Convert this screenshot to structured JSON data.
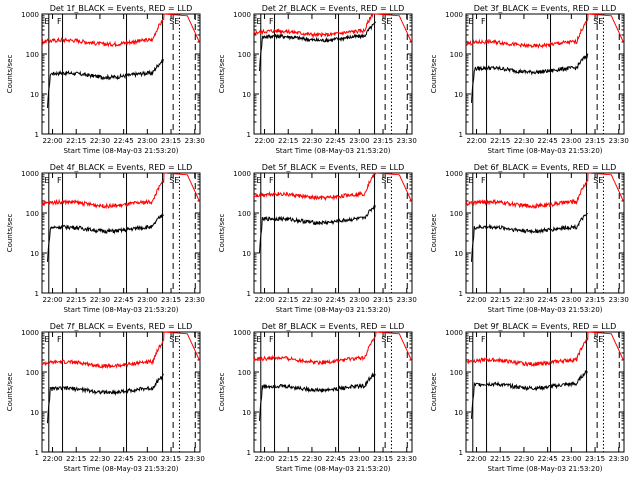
{
  "chart_data": [
    {
      "type": "line",
      "title": "Det 1f_BLACK = Events, RED = LLD",
      "ylabel": "Counts/sec",
      "xlabel": "Start Time (08-May-03 21:53:20)",
      "flags": [
        "E",
        "F",
        "SE"
      ],
      "series": [
        {
          "name": "BLACK",
          "level": 30
        },
        {
          "name": "RED",
          "level": 200
        }
      ]
    },
    {
      "type": "line",
      "title": "Det 2f_BLACK = Events, RED = LLD",
      "ylabel": "Counts/sec",
      "xlabel": "Start Time (08-May-03 21:53:20)",
      "flags": [
        "E",
        "F",
        "SE"
      ],
      "series": [
        {
          "name": "BLACK",
          "level": 250
        },
        {
          "name": "RED",
          "level": 340
        }
      ]
    },
    {
      "type": "line",
      "title": "Det 3f_BLACK = Events, RED = LLD",
      "ylabel": "Counts/sec",
      "xlabel": "Start Time (08-May-03 21:53:20)",
      "flags": [
        "E",
        "F",
        "SE"
      ],
      "series": [
        {
          "name": "BLACK",
          "level": 40
        },
        {
          "name": "RED",
          "level": 180
        }
      ]
    },
    {
      "type": "line",
      "title": "Det 4f_BLACK = Events, RED = LLD",
      "ylabel": "Counts/sec",
      "xlabel": "Start Time (08-May-03 21:53:20)",
      "flags": [
        "E",
        "F",
        "SE"
      ],
      "series": [
        {
          "name": "BLACK",
          "level": 40
        },
        {
          "name": "RED",
          "level": 170
        }
      ]
    },
    {
      "type": "line",
      "title": "Det 5f_BLACK = Events, RED = LLD",
      "ylabel": "Counts/sec",
      "xlabel": "Start Time (08-May-03 21:53:20)",
      "flags": [
        "E",
        "F",
        "SE"
      ],
      "series": [
        {
          "name": "BLACK",
          "level": 65
        },
        {
          "name": "RED",
          "level": 270
        }
      ]
    },
    {
      "type": "line",
      "title": "Det 6f_BLACK = Events, RED = LLD",
      "ylabel": "Counts/sec",
      "xlabel": "Start Time (08-May-03 21:53:20)",
      "flags": [
        "E",
        "F",
        "SE"
      ],
      "series": [
        {
          "name": "BLACK",
          "level": 40
        },
        {
          "name": "RED",
          "level": 170
        }
      ]
    },
    {
      "type": "line",
      "title": "Det 7f_BLACK = Events, RED = LLD",
      "ylabel": "Counts/sec",
      "xlabel": "Start Time (08-May-03 21:53:20)",
      "flags": [
        "E",
        "F",
        "SE"
      ],
      "series": [
        {
          "name": "BLACK",
          "level": 35
        },
        {
          "name": "RED",
          "level": 160
        }
      ]
    },
    {
      "type": "line",
      "title": "Det 8f_BLACK = Events, RED = LLD",
      "ylabel": "Counts/sec",
      "xlabel": "Start Time (08-May-03 21:53:20)",
      "flags": [
        "E",
        "F",
        "SE"
      ],
      "series": [
        {
          "name": "BLACK",
          "level": 40
        },
        {
          "name": "RED",
          "level": 200
        }
      ]
    },
    {
      "type": "line",
      "title": "Det 9f_BLACK = Events, RED = LLD",
      "ylabel": "Counts/sec",
      "xlabel": "Start Time (08-May-03 21:53:20)",
      "flags": [
        "E",
        "F",
        "SE"
      ],
      "series": [
        {
          "name": "BLACK",
          "level": 45
        },
        {
          "name": "RED",
          "level": 180
        }
      ]
    }
  ],
  "axes": {
    "x_ticks": [
      "22:00",
      "22:15",
      "22:30",
      "22:45",
      "23:00",
      "23:15",
      "23:30"
    ],
    "x_tick_minutes": [
      6.67,
      21.67,
      36.67,
      51.67,
      66.67,
      81.67,
      96.67
    ],
    "x_range_minutes": [
      0,
      100
    ],
    "y_scale": "log",
    "y_range": [
      1,
      1000
    ],
    "y_ticks": [
      "1",
      "10",
      "100",
      "1000"
    ],
    "vlines": [
      {
        "minute": 4.3,
        "style": "solid"
      },
      {
        "minute": 13.0,
        "style": "solid"
      },
      {
        "minute": 53.5,
        "style": "solid"
      },
      {
        "minute": 76.3,
        "style": "solid"
      },
      {
        "minute": 83.0,
        "style": "dashed"
      },
      {
        "minute": 87.0,
        "style": "dotted"
      },
      {
        "minute": 97.0,
        "style": "dashed"
      }
    ]
  },
  "colors": {
    "black_series": "#000000",
    "red_series": "#ff0000",
    "axes": "#000000",
    "background": "#ffffff"
  }
}
